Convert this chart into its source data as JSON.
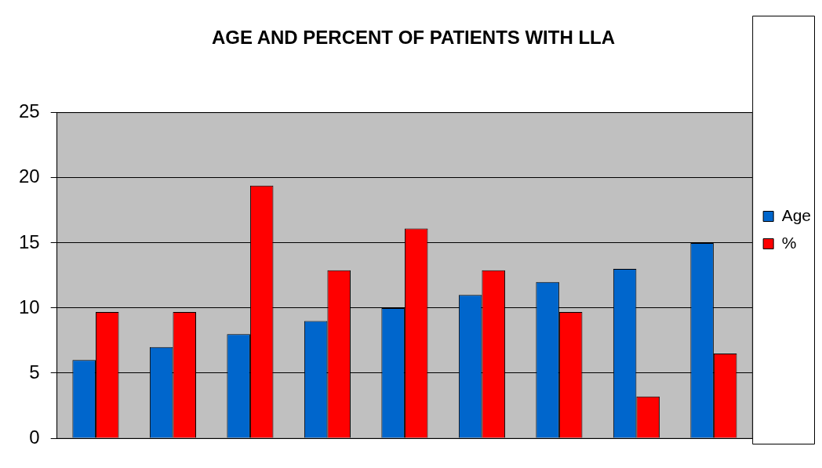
{
  "chart_data": {
    "type": "bar",
    "title": "AGE AND PERCENT OF PATIENTS WITH LLA",
    "categories": [
      null,
      null,
      null,
      null,
      null,
      null,
      null,
      null,
      null
    ],
    "series": [
      {
        "name": "Age",
        "color": "#0066cc",
        "values": [
          6,
          7,
          8,
          9,
          10,
          11,
          12,
          13,
          15
        ]
      },
      {
        "name": "%",
        "color": "#ff0000",
        "values": [
          9.7,
          9.7,
          19.4,
          12.9,
          16.1,
          12.9,
          9.7,
          3.2,
          6.5
        ]
      }
    ],
    "ylim": [
      0,
      25
    ],
    "yticks": [
      0,
      5,
      10,
      15,
      20,
      25
    ],
    "grid": "y",
    "legend": "right"
  }
}
